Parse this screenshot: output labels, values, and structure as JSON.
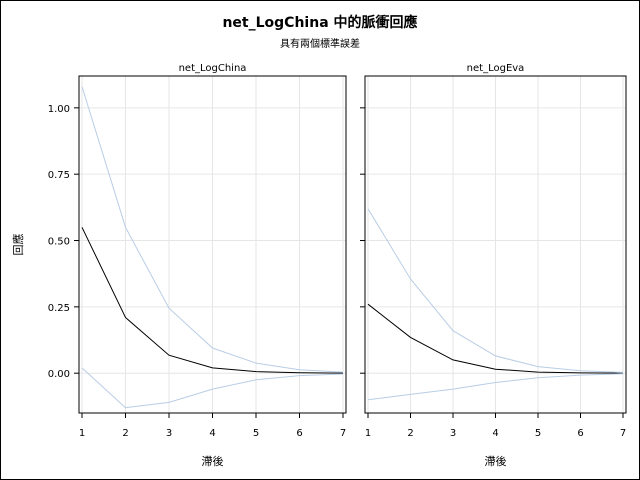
{
  "chart_data": {
    "type": "line",
    "title": "net_LogChina 中的脈衝回應",
    "subtitle": "具有兩個標準誤差",
    "ylabel": "回應",
    "xlabel": "滯後",
    "x": [
      1,
      2,
      3,
      4,
      5,
      6,
      7
    ],
    "ylim": [
      -0.15,
      1.12
    ],
    "yticks": [
      0.0,
      0.25,
      0.5,
      0.75,
      1.0
    ],
    "ytick_labels": [
      "0.00",
      "0.25",
      "0.50",
      "0.75",
      "1.00"
    ],
    "grid": true,
    "colors": {
      "response": "#000000",
      "bands": "#b9cde5",
      "grid": "#e6e6e6"
    },
    "panels": [
      {
        "title": "net_LogChina",
        "series": [
          {
            "role": "response",
            "values": [
              0.55,
              0.21,
              0.068,
              0.02,
              0.006,
              0.002,
              0.0005
            ]
          },
          {
            "role": "upper",
            "values": [
              1.08,
              0.55,
              0.245,
              0.095,
              0.038,
              0.013,
              0.004
            ]
          },
          {
            "role": "lower",
            "values": [
              0.02,
              -0.13,
              -0.11,
              -0.06,
              -0.025,
              -0.009,
              -0.003
            ]
          }
        ]
      },
      {
        "title": "net_LogEva",
        "series": [
          {
            "role": "response",
            "values": [
              0.26,
              0.135,
              0.05,
              0.015,
              0.004,
              0.001,
              0.0003
            ]
          },
          {
            "role": "upper",
            "values": [
              0.62,
              0.355,
              0.16,
              0.065,
              0.025,
              0.009,
              0.003
            ]
          },
          {
            "role": "lower",
            "values": [
              -0.1,
              -0.08,
              -0.06,
              -0.035,
              -0.017,
              -0.007,
              -0.002
            ]
          }
        ]
      }
    ]
  }
}
